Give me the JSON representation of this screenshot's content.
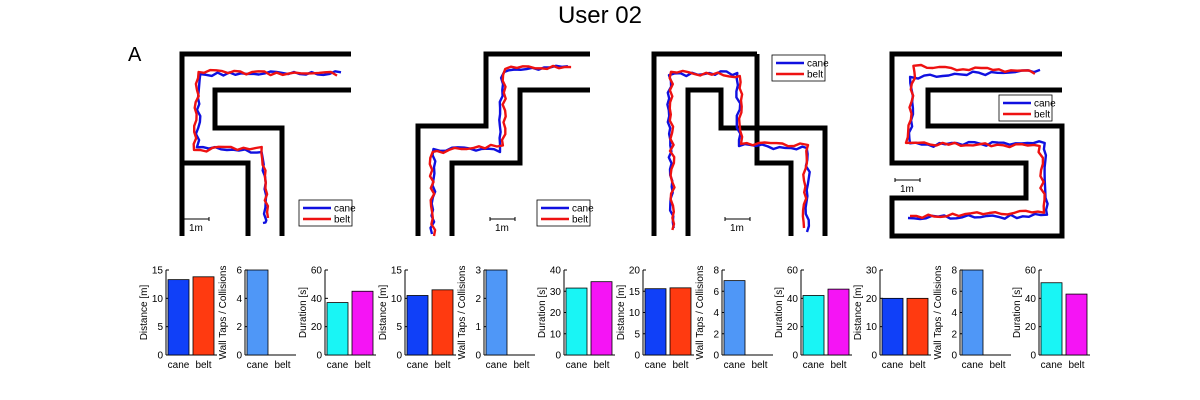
{
  "figure": {
    "title": "User 02",
    "panel_letter": "A",
    "scale_bar_label": "1m"
  },
  "colors": {
    "cane_path": "#1010e0",
    "belt_path": "#ee1111",
    "distance_cane": "#1040f8",
    "distance_belt": "#ff3a10",
    "taps_cane": "#4f97f7",
    "duration_cane": "#19f5f5",
    "duration_belt": "#f514f5",
    "wall": "#000000"
  },
  "chart_data": [
    {
      "type": "line",
      "panel": "maze-1",
      "series": [
        {
          "name": "cane"
        },
        {
          "name": "belt"
        }
      ],
      "legend": "bottom-right",
      "axes": "off"
    },
    {
      "type": "line",
      "panel": "maze-2",
      "series": [
        {
          "name": "cane"
        },
        {
          "name": "belt"
        }
      ],
      "legend": "bottom-right",
      "axes": "off"
    },
    {
      "type": "line",
      "panel": "maze-3",
      "series": [
        {
          "name": "cane"
        },
        {
          "name": "belt"
        }
      ],
      "legend": "top-right",
      "axes": "off"
    },
    {
      "type": "line",
      "panel": "maze-4",
      "series": [
        {
          "name": "cane"
        },
        {
          "name": "belt"
        }
      ],
      "legend": "top-right",
      "axes": "off"
    },
    {
      "type": "bar",
      "metric": "distance",
      "ylabel": "Distance [m]",
      "categories": [
        "cane",
        "belt"
      ],
      "values": [
        13.3,
        13.8
      ],
      "ylim": [
        0,
        15
      ],
      "yticks": [
        0,
        5,
        10,
        15
      ]
    },
    {
      "type": "bar",
      "metric": "taps",
      "ylabel": "Wall Taps / Collisions",
      "categories": [
        "cane",
        "belt"
      ],
      "values": [
        6,
        0
      ],
      "ylim": [
        0,
        6
      ],
      "yticks": [
        0,
        2,
        4,
        6
      ]
    },
    {
      "type": "bar",
      "metric": "duration",
      "ylabel": "Duration [s]",
      "categories": [
        "cane",
        "belt"
      ],
      "values": [
        37,
        45
      ],
      "ylim": [
        0,
        60
      ],
      "yticks": [
        0,
        20,
        40,
        60
      ]
    },
    {
      "type": "bar",
      "metric": "distance",
      "ylabel": "Distance [m]",
      "categories": [
        "cane",
        "belt"
      ],
      "values": [
        10.5,
        11.5
      ],
      "ylim": [
        0,
        15
      ],
      "yticks": [
        0,
        5,
        10,
        15
      ]
    },
    {
      "type": "bar",
      "metric": "taps",
      "ylabel": "Wall Taps / Collisions",
      "categories": [
        "cane",
        "belt"
      ],
      "values": [
        3,
        0
      ],
      "ylim": [
        0,
        3
      ],
      "yticks": [
        0,
        1,
        2,
        3
      ]
    },
    {
      "type": "bar",
      "metric": "duration",
      "ylabel": "Duration [s]",
      "categories": [
        "cane",
        "belt"
      ],
      "values": [
        31.5,
        34.5
      ],
      "ylim": [
        0,
        40
      ],
      "yticks": [
        0,
        10,
        20,
        30,
        40
      ]
    },
    {
      "type": "bar",
      "metric": "distance",
      "ylabel": "Distance [m]",
      "categories": [
        "cane",
        "belt"
      ],
      "values": [
        15.6,
        15.8
      ],
      "ylim": [
        0,
        20
      ],
      "yticks": [
        0,
        5,
        10,
        15,
        20
      ]
    },
    {
      "type": "bar",
      "metric": "taps",
      "ylabel": "Wall Taps / Collisions",
      "categories": [
        "cane",
        "belt"
      ],
      "values": [
        7,
        0
      ],
      "ylim": [
        0,
        8
      ],
      "yticks": [
        0,
        2,
        4,
        6,
        8
      ]
    },
    {
      "type": "bar",
      "metric": "duration",
      "ylabel": "Duration [s]",
      "categories": [
        "cane",
        "belt"
      ],
      "values": [
        42,
        46.5
      ],
      "ylim": [
        0,
        60
      ],
      "yticks": [
        0,
        20,
        40,
        60
      ]
    },
    {
      "type": "bar",
      "metric": "distance",
      "ylabel": "Distance [m]",
      "categories": [
        "cane",
        "belt"
      ],
      "values": [
        20,
        20
      ],
      "ylim": [
        0,
        30
      ],
      "yticks": [
        0,
        10,
        20,
        30
      ]
    },
    {
      "type": "bar",
      "metric": "taps",
      "ylabel": "Wall Taps / Collisions",
      "categories": [
        "cane",
        "belt"
      ],
      "values": [
        8,
        0
      ],
      "ylim": [
        0,
        8
      ],
      "yticks": [
        0,
        2,
        4,
        6,
        8
      ]
    },
    {
      "type": "bar",
      "metric": "duration",
      "ylabel": "Duration [s]",
      "categories": [
        "cane",
        "belt"
      ],
      "values": [
        51,
        43
      ],
      "ylim": [
        0,
        60
      ],
      "yticks": [
        0,
        20,
        40,
        60
      ]
    }
  ]
}
